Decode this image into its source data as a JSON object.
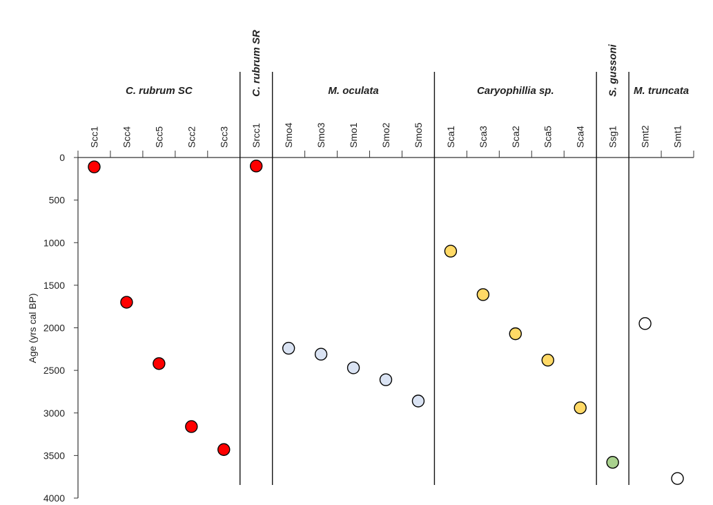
{
  "chart_data": {
    "type": "scatter",
    "ylabel": "Age (yrs cal BP)",
    "ylim": [
      0,
      4000
    ],
    "y_inverted": true,
    "y_ticks": [
      0,
      500,
      1000,
      1500,
      2000,
      2500,
      3000,
      3500,
      4000
    ],
    "grid": false,
    "categories": [
      "Scc1",
      "Scc4",
      "Scc5",
      "Scc2",
      "Scc3",
      "Srcc1",
      "Smo4",
      "Smo3",
      "Smo1",
      "Smo2",
      "Smo5",
      "Sca1",
      "Sca3",
      "Sca2",
      "Sca5",
      "Sca4",
      "Ssg1",
      "Smt2",
      "Smt1"
    ],
    "groups": [
      {
        "name": "C. rubrum SC",
        "color": "#ff0000",
        "samples": [
          "Scc1",
          "Scc4",
          "Scc5",
          "Scc2",
          "Scc3"
        ],
        "values": [
          110,
          1700,
          2420,
          3160,
          3430
        ]
      },
      {
        "name": "C. rubrum SR",
        "color": "#ff0000",
        "samples": [
          "Srcc1"
        ],
        "values": [
          100
        ]
      },
      {
        "name": "M. oculata",
        "color": "#dae3f3",
        "samples": [
          "Smo4",
          "Smo3",
          "Smo1",
          "Smo2",
          "Smo5"
        ],
        "values": [
          2240,
          2310,
          2470,
          2610,
          2860
        ]
      },
      {
        "name": "Caryophillia sp.",
        "color": "#ffd966",
        "samples": [
          "Sca1",
          "Sca3",
          "Sca2",
          "Sca5",
          "Sca4"
        ],
        "values": [
          1100,
          1610,
          2070,
          2380,
          2940
        ]
      },
      {
        "name": "S. gussoni",
        "color": "#a9d18e",
        "samples": [
          "Ssg1"
        ],
        "values": [
          3580
        ]
      },
      {
        "name": "M. truncata",
        "color": "#ffffff",
        "samples": [
          "Smt2",
          "Smt1"
        ],
        "values": [
          1950,
          3770
        ]
      }
    ]
  }
}
